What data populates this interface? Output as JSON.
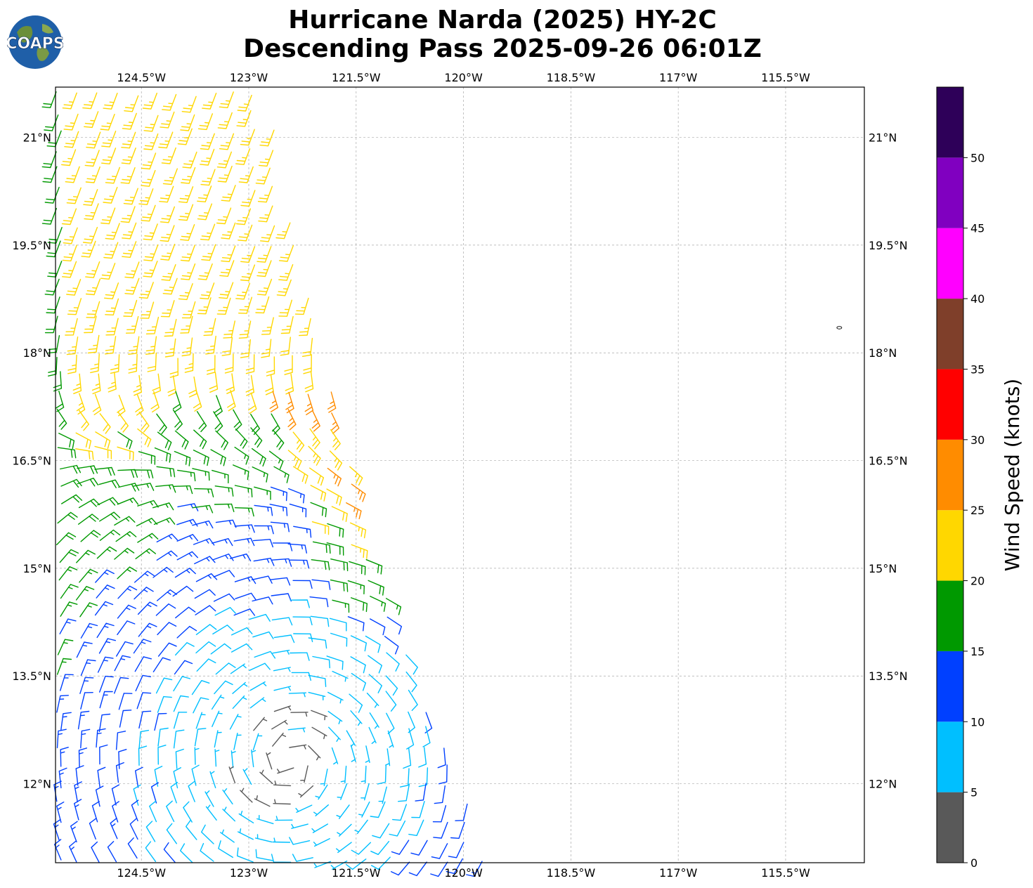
{
  "logo": {
    "text": "COAPS"
  },
  "header": {
    "title_line1": "Hurricane Narda (2025) HY-2C",
    "title_line2": "Descending Pass 2025-09-26 06:01Z"
  },
  "chart_data": {
    "type": "wind-barb map",
    "x_ticks": [
      "124.5°W",
      "123°W",
      "121.5°W",
      "120°W",
      "118.5°W",
      "117°W",
      "115.5°W"
    ],
    "x_tick_values": [
      -124.5,
      -123,
      -121.5,
      -120,
      -118.5,
      -117,
      -115.5
    ],
    "y_ticks": [
      "21°N",
      "19.5°N",
      "18°N",
      "16.5°N",
      "15°N",
      "13.5°N",
      "12°N"
    ],
    "y_tick_values": [
      21,
      19.5,
      18,
      16.5,
      15,
      13.5,
      12
    ],
    "lon_range": [
      -125.7,
      -114.4
    ],
    "lat_range": [
      10.9,
      21.7
    ],
    "grid": true,
    "storm_center": {
      "lon": -122.4,
      "lat": 12.3
    },
    "swath_east_edge": [
      [
        -122.8,
        21.6
      ],
      [
        -121.3,
        15.2
      ],
      [
        -119.6,
        10.9
      ]
    ],
    "island_marker": {
      "lon": -114.75,
      "lat": 18.35
    },
    "colorbar": {
      "label": "Wind Speed (knots)",
      "bounds": [
        0,
        5,
        10,
        15,
        20,
        25,
        30,
        35,
        40,
        45,
        50,
        55
      ],
      "tick_labels": [
        "0",
        "5",
        "10",
        "15",
        "20",
        "25",
        "30",
        "35",
        "40",
        "45",
        "50"
      ],
      "colors": [
        "#595959",
        "#00bfff",
        "#0040ff",
        "#009900",
        "#ffd700",
        "#ff8c00",
        "#ff0000",
        "#7f3f2a",
        "#ff00ff",
        "#8000c0",
        "#2e0059"
      ]
    }
  }
}
